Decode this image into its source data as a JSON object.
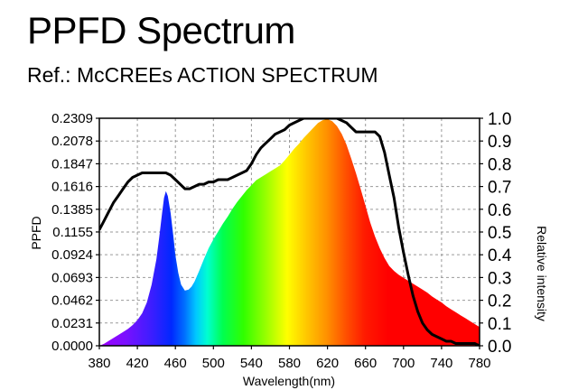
{
  "header": {
    "title": "PPFD Spectrum",
    "subtitle": "Ref.: McCREEs ACTION SPECTRUM"
  },
  "chart_data": {
    "type": "area",
    "title": "PPFD Spectrum",
    "subtitle": "Ref.: McCREEs ACTION SPECTRUM",
    "xlabel": "Wavelength(nm)",
    "ylabel": "PPFD",
    "y2label": "Relative intensity",
    "xlim": [
      380,
      780
    ],
    "ylim": [
      0,
      0.2309
    ],
    "y2lim": [
      0,
      1.0
    ],
    "grid": true,
    "x_ticks": [
      "380",
      "420",
      "460",
      "500",
      "540",
      "580",
      "620",
      "660",
      "700",
      "740",
      "780"
    ],
    "y_ticks": [
      "0.0000",
      "0.0231",
      "0.0462",
      "0.0693",
      "0.0924",
      "0.1155",
      "0.1385",
      "0.1616",
      "0.1847",
      "0.2078",
      "0.2309"
    ],
    "y2_ticks": [
      "0.0",
      "0.1",
      "0.2",
      "0.3",
      "0.4",
      "0.5",
      "0.6",
      "0.7",
      "0.8",
      "0.9",
      "1.0"
    ],
    "series": [
      {
        "axis": "left",
        "style": "spectral-fill",
        "x": [
          380,
          385,
          390,
          395,
          400,
          405,
          410,
          415,
          420,
          425,
          430,
          435,
          440,
          443,
          446,
          448,
          450,
          452,
          455,
          458,
          460,
          463,
          466,
          470,
          474,
          477,
          480,
          485,
          490,
          495,
          500,
          505,
          510,
          515,
          520,
          525,
          530,
          535,
          540,
          545,
          550,
          555,
          560,
          565,
          570,
          575,
          580,
          585,
          590,
          595,
          600,
          605,
          610,
          615,
          620,
          625,
          630,
          635,
          640,
          645,
          650,
          655,
          660,
          665,
          670,
          675,
          680,
          685,
          690,
          695,
          700,
          705,
          710,
          715,
          720,
          725,
          730,
          735,
          740,
          745,
          750,
          755,
          760,
          765,
          770,
          775,
          780
        ],
        "values": [
          0.0,
          0.002,
          0.005,
          0.008,
          0.011,
          0.014,
          0.017,
          0.021,
          0.026,
          0.033,
          0.044,
          0.062,
          0.088,
          0.11,
          0.135,
          0.15,
          0.157,
          0.152,
          0.135,
          0.11,
          0.092,
          0.074,
          0.062,
          0.056,
          0.057,
          0.06,
          0.065,
          0.076,
          0.088,
          0.099,
          0.108,
          0.116,
          0.124,
          0.131,
          0.139,
          0.146,
          0.152,
          0.158,
          0.163,
          0.168,
          0.171,
          0.174,
          0.177,
          0.18,
          0.183,
          0.188,
          0.194,
          0.2,
          0.205,
          0.211,
          0.216,
          0.221,
          0.226,
          0.229,
          0.23,
          0.228,
          0.223,
          0.215,
          0.204,
          0.19,
          0.175,
          0.159,
          0.142,
          0.125,
          0.111,
          0.099,
          0.089,
          0.081,
          0.076,
          0.072,
          0.069,
          0.066,
          0.063,
          0.06,
          0.057,
          0.054,
          0.05,
          0.047,
          0.044,
          0.04,
          0.037,
          0.034,
          0.031,
          0.028,
          0.025,
          0.022,
          0.019
        ]
      },
      {
        "axis": "right",
        "style": "black-line",
        "x": [
          380,
          385,
          390,
          395,
          400,
          405,
          410,
          415,
          420,
          425,
          430,
          435,
          440,
          445,
          450,
          455,
          460,
          465,
          470,
          475,
          480,
          485,
          490,
          495,
          500,
          505,
          510,
          515,
          520,
          525,
          530,
          535,
          540,
          545,
          550,
          555,
          560,
          565,
          570,
          575,
          580,
          585,
          590,
          595,
          600,
          605,
          610,
          615,
          620,
          625,
          630,
          635,
          640,
          645,
          650,
          655,
          660,
          665,
          670,
          675,
          680,
          685,
          690,
          695,
          700,
          705,
          710,
          715,
          720,
          725,
          730,
          735,
          740,
          745,
          750,
          755,
          760,
          765,
          770,
          775,
          780
        ],
        "values": [
          0.51,
          0.55,
          0.59,
          0.63,
          0.66,
          0.69,
          0.72,
          0.74,
          0.75,
          0.76,
          0.76,
          0.76,
          0.76,
          0.76,
          0.76,
          0.75,
          0.73,
          0.71,
          0.69,
          0.69,
          0.7,
          0.71,
          0.71,
          0.72,
          0.72,
          0.73,
          0.73,
          0.73,
          0.74,
          0.75,
          0.76,
          0.77,
          0.8,
          0.84,
          0.87,
          0.89,
          0.91,
          0.93,
          0.94,
          0.95,
          0.97,
          0.98,
          0.99,
          1.0,
          1.0,
          1.0,
          1.0,
          1.0,
          1.0,
          1.0,
          1.0,
          0.99,
          0.98,
          0.96,
          0.94,
          0.94,
          0.94,
          0.94,
          0.94,
          0.92,
          0.85,
          0.75,
          0.65,
          0.52,
          0.41,
          0.31,
          0.22,
          0.15,
          0.1,
          0.07,
          0.05,
          0.04,
          0.03,
          0.02,
          0.02,
          0.01,
          0.01,
          0.01,
          0.01,
          0.01,
          0.0
        ]
      }
    ]
  }
}
